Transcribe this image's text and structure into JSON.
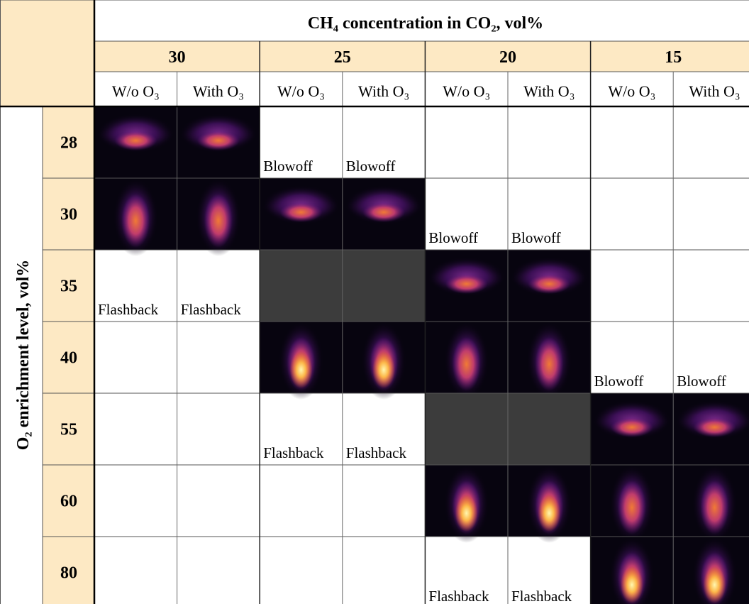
{
  "table": {
    "title": "CH₄ concentration in CO₂, vol%",
    "row_axis_label": "O₂ enrichment level, vol%",
    "groups": [
      "30",
      "25",
      "20",
      "15"
    ],
    "subheaders": [
      "W/o O₃",
      "With O₃",
      "W/o O₃",
      "With O₃",
      "W/o O₃",
      "With O₃",
      "W/o O₃",
      "With O₃"
    ],
    "rows": [
      {
        "label": "28",
        "cells": [
          null,
          null,
          "Blowoff",
          "Blowoff",
          null,
          null,
          null,
          null
        ]
      },
      {
        "label": "30",
        "cells": [
          null,
          null,
          null,
          null,
          "Blowoff",
          "Blowoff",
          null,
          null
        ]
      },
      {
        "label": "35",
        "cells": [
          "Flashback",
          "Flashback",
          null,
          null,
          null,
          null,
          null,
          null
        ]
      },
      {
        "label": "40",
        "cells": [
          null,
          null,
          null,
          null,
          null,
          null,
          "Blowoff",
          "Blowoff"
        ]
      },
      {
        "label": "55",
        "cells": [
          null,
          null,
          "Flashback",
          "Flashback",
          null,
          null,
          null,
          null
        ]
      },
      {
        "label": "60",
        "cells": [
          null,
          null,
          null,
          null,
          null,
          null,
          null,
          null
        ]
      },
      {
        "label": "80",
        "cells": [
          null,
          null,
          null,
          null,
          "Flashback",
          "Flashback",
          null,
          null
        ]
      }
    ]
  }
}
